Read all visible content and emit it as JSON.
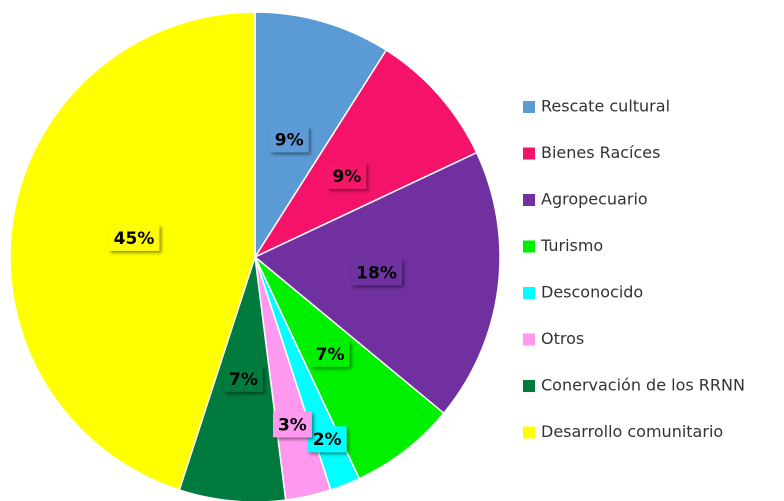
{
  "chart_data": {
    "type": "pie",
    "categories": [
      "Rescate cultural",
      "Bienes Racíces",
      "Agropecuario",
      "Turismo",
      "Desconocido",
      "Otros",
      "Conervación de los RRNN",
      "Desarrollo comunitario"
    ],
    "values": [
      9,
      9,
      18,
      7,
      2,
      3,
      7,
      45
    ],
    "value_labels": [
      "9%",
      "9%",
      "18%",
      "7%",
      "2%",
      "3%",
      "7%",
      "45%"
    ],
    "colors": [
      "#5b9bd5",
      "#f5136a",
      "#7030a0",
      "#00f000",
      "#00ffff",
      "#ff99f0",
      "#007a3d",
      "#ffff00"
    ],
    "legend": "right"
  }
}
